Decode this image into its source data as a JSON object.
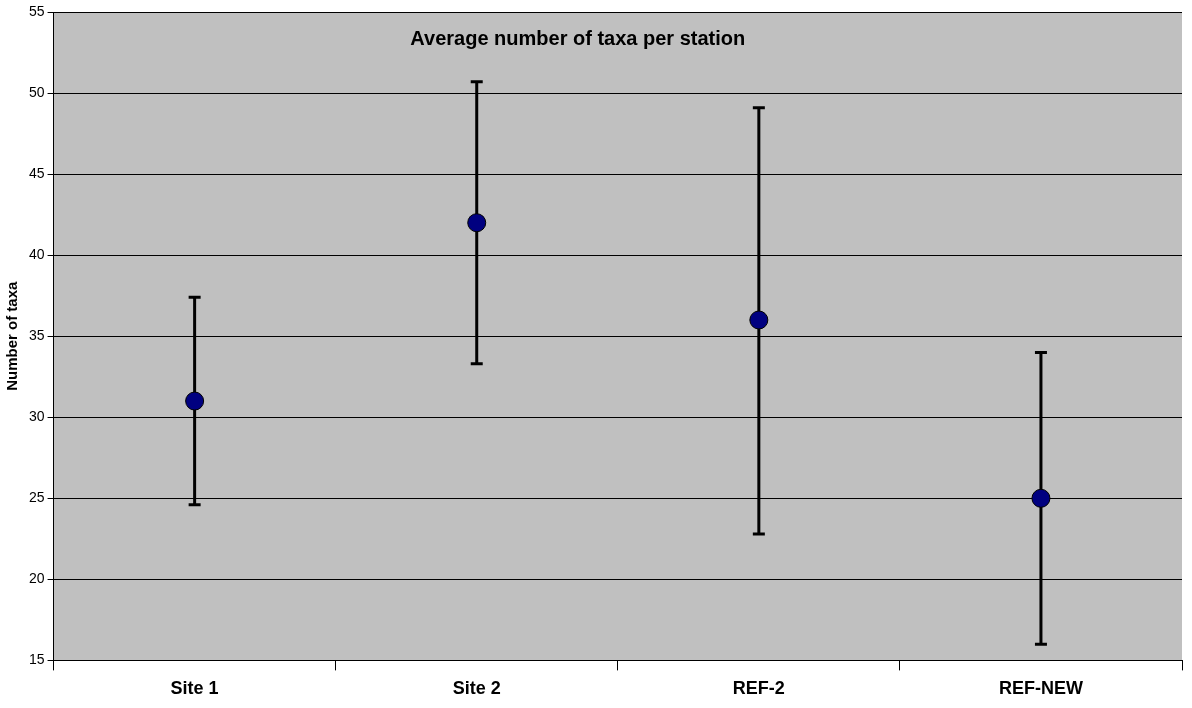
{
  "chart_data": {
    "type": "scatter",
    "title": "Average number of taxa per station",
    "ylabel": "Number of taxa",
    "categories": [
      "Site 1",
      "Site 2",
      "REF-2",
      "REF-NEW"
    ],
    "series": [
      {
        "color": "#000080",
        "values": [
          31,
          42,
          36,
          25
        ],
        "errors": [
          [
            24.6,
            37.4
          ],
          [
            33.3,
            50.7
          ],
          [
            22.8,
            49.1
          ],
          [
            16.0,
            34.0
          ]
        ]
      }
    ],
    "ylim": [
      15,
      55
    ],
    "yticks": [
      15,
      20,
      25,
      30,
      35,
      40,
      45,
      50,
      55
    ],
    "grid": "y",
    "marker": "circle",
    "legend": false
  }
}
